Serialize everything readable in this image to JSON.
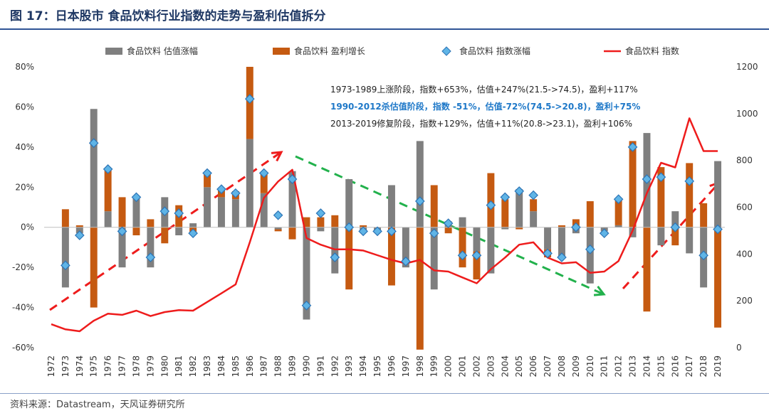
{
  "title": "图 17：日本股市 食品饮料行业指数的走势与盈利估值拆分",
  "source": "资料来源：Datastream，天风证券研究所",
  "colors": {
    "valuation": "#7f7f7f",
    "earnings": "#c55a11",
    "marker": "#5fb4e6",
    "index_line": "#ee1c1c",
    "arrow_red": "#ee1c1c",
    "arrow_green": "#22b14c"
  },
  "annotations": [
    "1973-1989上涨阶段，指数+653%，估值+247%(21.5->74.5)，盈利+117%",
    "1990-2012杀估值阶段，指数 -51%，估值-72%(74.5->20.8)，盈利+75%",
    "2013-2019修复阶段，指数+129%，估值+11%(20.8->23.1)，盈利+106%"
  ],
  "chart_data": {
    "type": "bar",
    "categories": [
      "1972",
      "1973",
      "1974",
      "1975",
      "1976",
      "1977",
      "1978",
      "1979",
      "1980",
      "1981",
      "1982",
      "1983",
      "1984",
      "1985",
      "1986",
      "1987",
      "1988",
      "1989",
      "1990",
      "1991",
      "1992",
      "1993",
      "1994",
      "1995",
      "1996",
      "1997",
      "1998",
      "1999",
      "2000",
      "2001",
      "2002",
      "2003",
      "2004",
      "2005",
      "2006",
      "2007",
      "2008",
      "2009",
      "2010",
      "2011",
      "2012",
      "2013",
      "2014",
      "2015",
      "2016",
      "2017",
      "2018",
      "2019"
    ],
    "y_left_ticks": [
      "80%",
      "60%",
      "40%",
      "20%",
      "0%",
      "-20%",
      "-40%",
      "-60%"
    ],
    "y_left_range": [
      -60,
      80
    ],
    "y_right_ticks": [
      "1200",
      "1000",
      "800",
      "600",
      "400",
      "200",
      "0"
    ],
    "y_right_range": [
      0,
      1200
    ],
    "legend": [
      "食品饮料 估值涨幅",
      "食品饮料 盈利增长",
      "食品饮料 指数涨幅",
      "食品饮料 指数"
    ],
    "legend_position": "top",
    "series": [
      {
        "name": "食品饮料 估值涨幅",
        "type": "bar",
        "axis": "left",
        "values": [
          null,
          -30,
          -3,
          59,
          8,
          -20,
          15,
          -20,
          15,
          -4,
          2,
          20,
          15,
          14,
          44,
          17,
          -1,
          28,
          -46,
          -2,
          -23,
          24,
          -2,
          -2,
          21,
          -20,
          43,
          -31,
          3,
          5,
          -12,
          -23,
          -1,
          19,
          8,
          -11,
          -15,
          -3,
          -28,
          -2,
          1,
          -5,
          47,
          -9,
          8,
          -13,
          -30,
          33
        ]
      },
      {
        "name": "食品饮料 盈利增长",
        "type": "bar",
        "axis": "left",
        "values": [
          null,
          9,
          1,
          -40,
          21,
          15,
          -4,
          4,
          -8,
          11,
          -3,
          7,
          4,
          4,
          36,
          10,
          -1,
          -6,
          5,
          5,
          6,
          -31,
          1,
          0,
          -29,
          0,
          -61,
          21,
          -3,
          -20,
          -14,
          27,
          14,
          -1,
          6,
          -4,
          1,
          4,
          13,
          0,
          13,
          43,
          -42,
          30,
          -9,
          32,
          12,
          -50
        ]
      },
      {
        "name": "食品饮料 指数涨幅",
        "type": "marker",
        "axis": "left",
        "values": [
          null,
          -19,
          -4,
          42,
          29,
          -2,
          15,
          -15,
          8,
          7,
          -3,
          27,
          19,
          17,
          64,
          27,
          6,
          24,
          -39,
          7,
          -15,
          0,
          -2,
          -2,
          -2,
          -17,
          13,
          -3,
          2,
          -14,
          -14,
          11,
          15,
          18,
          16,
          -13,
          -15,
          0,
          -11,
          -3,
          14,
          40,
          24,
          25,
          0,
          23,
          -14,
          -1
        ]
      },
      {
        "name": "食品饮料 指数",
        "type": "line",
        "axis": "right",
        "values": [
          100,
          78,
          70,
          115,
          145,
          140,
          158,
          135,
          152,
          160,
          158,
          195,
          232,
          270,
          450,
          640,
          710,
          760,
          468,
          440,
          420,
          420,
          415,
          395,
          375,
          360,
          375,
          330,
          325,
          300,
          275,
          335,
          385,
          440,
          450,
          385,
          360,
          365,
          320,
          325,
          370,
          500,
          660,
          790,
          770,
          980,
          840,
          840
        ]
      }
    ]
  }
}
